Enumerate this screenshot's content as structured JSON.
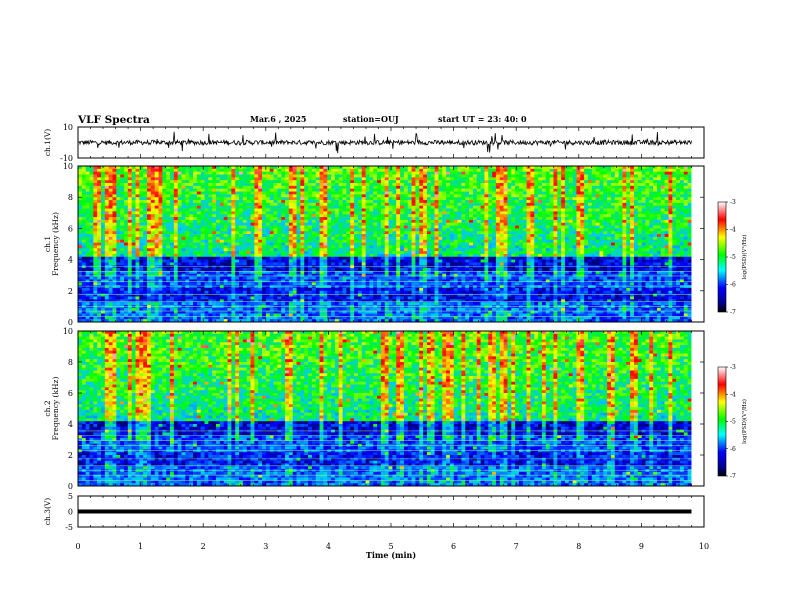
{
  "header": {
    "title": "VLF Spectra",
    "date": "Mar.6 , 2025",
    "station": "station=OUJ",
    "start": "start UT = 23: 40: 0"
  },
  "colors": {
    "background": "#ffffff",
    "axis": "#000000",
    "colormap": [
      "#000080",
      "#0000ff",
      "#00ffff",
      "#00ff00",
      "#ffff00",
      "#ff0000",
      "#ffffff"
    ]
  },
  "chart_data": [
    {
      "type": "line",
      "panel": "ch1-waveform",
      "ylabel": "ch.1(V)",
      "yticks": [
        "10",
        "-10"
      ],
      "ylim": [
        -10,
        10
      ],
      "xlim": [
        0,
        10
      ],
      "description_values": {
        "baseline": 0,
        "noise_amplitude": 1.5,
        "spike_amplitude": 7
      },
      "x_end": 9.8
    },
    {
      "type": "heatmap",
      "panel": "ch1-spectrogram",
      "ylabel1": "ch.1",
      "ylabel2": "Frequency (kHz)",
      "yticks": [
        "0",
        "2",
        "4",
        "6",
        "8",
        "10"
      ],
      "ylim": [
        0,
        10
      ],
      "xlim": [
        0,
        10
      ],
      "x_end": 9.8,
      "colorbar": {
        "label": "log(PSD)(V²/Hz)",
        "ticks": [
          "-3",
          "-4",
          "-5",
          "-6",
          "-7"
        ],
        "range": [
          -7,
          -3
        ]
      }
    },
    {
      "type": "heatmap",
      "panel": "ch2-spectrogram",
      "ylabel1": "ch.2",
      "ylabel2": "Frequency (kHz)",
      "yticks": [
        "0",
        "2",
        "4",
        "6",
        "8",
        "10"
      ],
      "ylim": [
        0,
        10
      ],
      "xlim": [
        0,
        10
      ],
      "x_end": 9.8,
      "colorbar": {
        "label": "log(PSD)(V²/Hz)",
        "ticks": [
          "-3",
          "-4",
          "-5",
          "-6",
          "-7"
        ],
        "range": [
          -7,
          -3
        ]
      }
    },
    {
      "type": "line",
      "panel": "ch3-waveform",
      "ylabel": "ch.3(V)",
      "yticks": [
        "5",
        "0",
        "-5"
      ],
      "ylim": [
        -5,
        5
      ],
      "xlim": [
        0,
        10
      ],
      "x": [
        0,
        9.8
      ],
      "y": [
        0,
        0
      ],
      "x_end": 9.8
    }
  ],
  "xaxis": {
    "label": "Time (min)",
    "ticks": [
      "0",
      "1",
      "2",
      "3",
      "4",
      "5",
      "6",
      "7",
      "8",
      "9",
      "10"
    ]
  }
}
